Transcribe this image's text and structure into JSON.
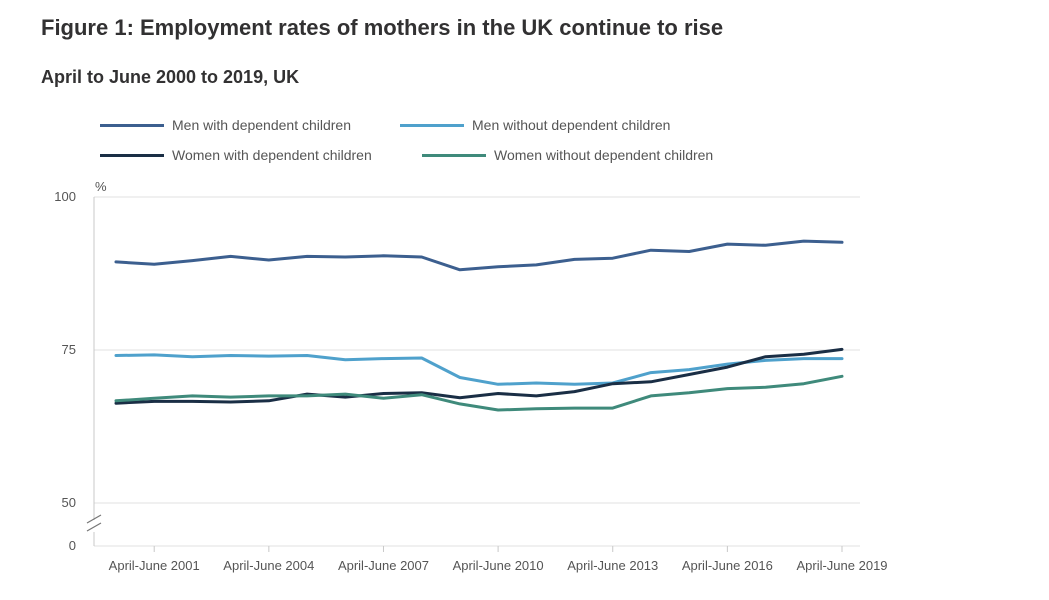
{
  "title": "Figure 1: Employment rates of mothers in the UK continue to rise",
  "subtitle": "April to June 2000 to 2019, UK",
  "chart_data": {
    "type": "line",
    "ylabel": "%",
    "xlabel": "",
    "yticks": [
      {
        "label": "100",
        "value": 100
      },
      {
        "label": "75",
        "value": 75
      },
      {
        "label": "50",
        "value": 50
      },
      {
        "label": "0",
        "value": 0
      }
    ],
    "ylim": [
      50,
      100
    ],
    "axis_break": true,
    "grid": true,
    "legend_position": "top",
    "x": [
      2000,
      2001,
      2002,
      2003,
      2004,
      2005,
      2006,
      2007,
      2008,
      2009,
      2010,
      2011,
      2012,
      2013,
      2014,
      2015,
      2016,
      2017,
      2018,
      2019
    ],
    "xticks": [
      {
        "label": "April-June 2001",
        "value": 2001
      },
      {
        "label": "April-June 2004",
        "value": 2004
      },
      {
        "label": "April-June 2007",
        "value": 2007
      },
      {
        "label": "April-June 2010",
        "value": 2010
      },
      {
        "label": "April-June 2013",
        "value": 2013
      },
      {
        "label": "April-June 2016",
        "value": 2016
      },
      {
        "label": "April-June 2019",
        "value": 2019
      }
    ],
    "series": [
      {
        "name": "Men with dependent children",
        "color": "#3c5f8f",
        "values": [
          89.4,
          89.0,
          89.6,
          90.3,
          89.7,
          90.3,
          90.2,
          90.4,
          90.2,
          88.1,
          88.6,
          88.9,
          89.8,
          90.0,
          91.3,
          91.1,
          92.3,
          92.1,
          92.8,
          92.6
        ]
      },
      {
        "name": "Men without dependent children",
        "color": "#4fa1cc",
        "values": [
          74.1,
          74.2,
          73.9,
          74.1,
          74.0,
          74.1,
          73.4,
          73.6,
          73.7,
          70.5,
          69.4,
          69.6,
          69.4,
          69.6,
          71.3,
          71.8,
          72.7,
          73.3,
          73.6,
          73.6
        ]
      },
      {
        "name": "Women with dependent children",
        "color": "#1a2e45",
        "values": [
          66.3,
          66.6,
          66.6,
          66.5,
          66.7,
          67.8,
          67.3,
          67.9,
          68.0,
          67.2,
          67.9,
          67.5,
          68.2,
          69.5,
          69.8,
          71.0,
          72.2,
          73.9,
          74.3,
          75.1
        ]
      },
      {
        "name": "Women without dependent children",
        "color": "#3f8a7b",
        "values": [
          66.7,
          67.1,
          67.5,
          67.3,
          67.5,
          67.5,
          67.8,
          67.1,
          67.7,
          66.2,
          65.2,
          65.4,
          65.5,
          65.5,
          67.5,
          68.0,
          68.7,
          68.9,
          69.5,
          70.7
        ]
      }
    ]
  }
}
